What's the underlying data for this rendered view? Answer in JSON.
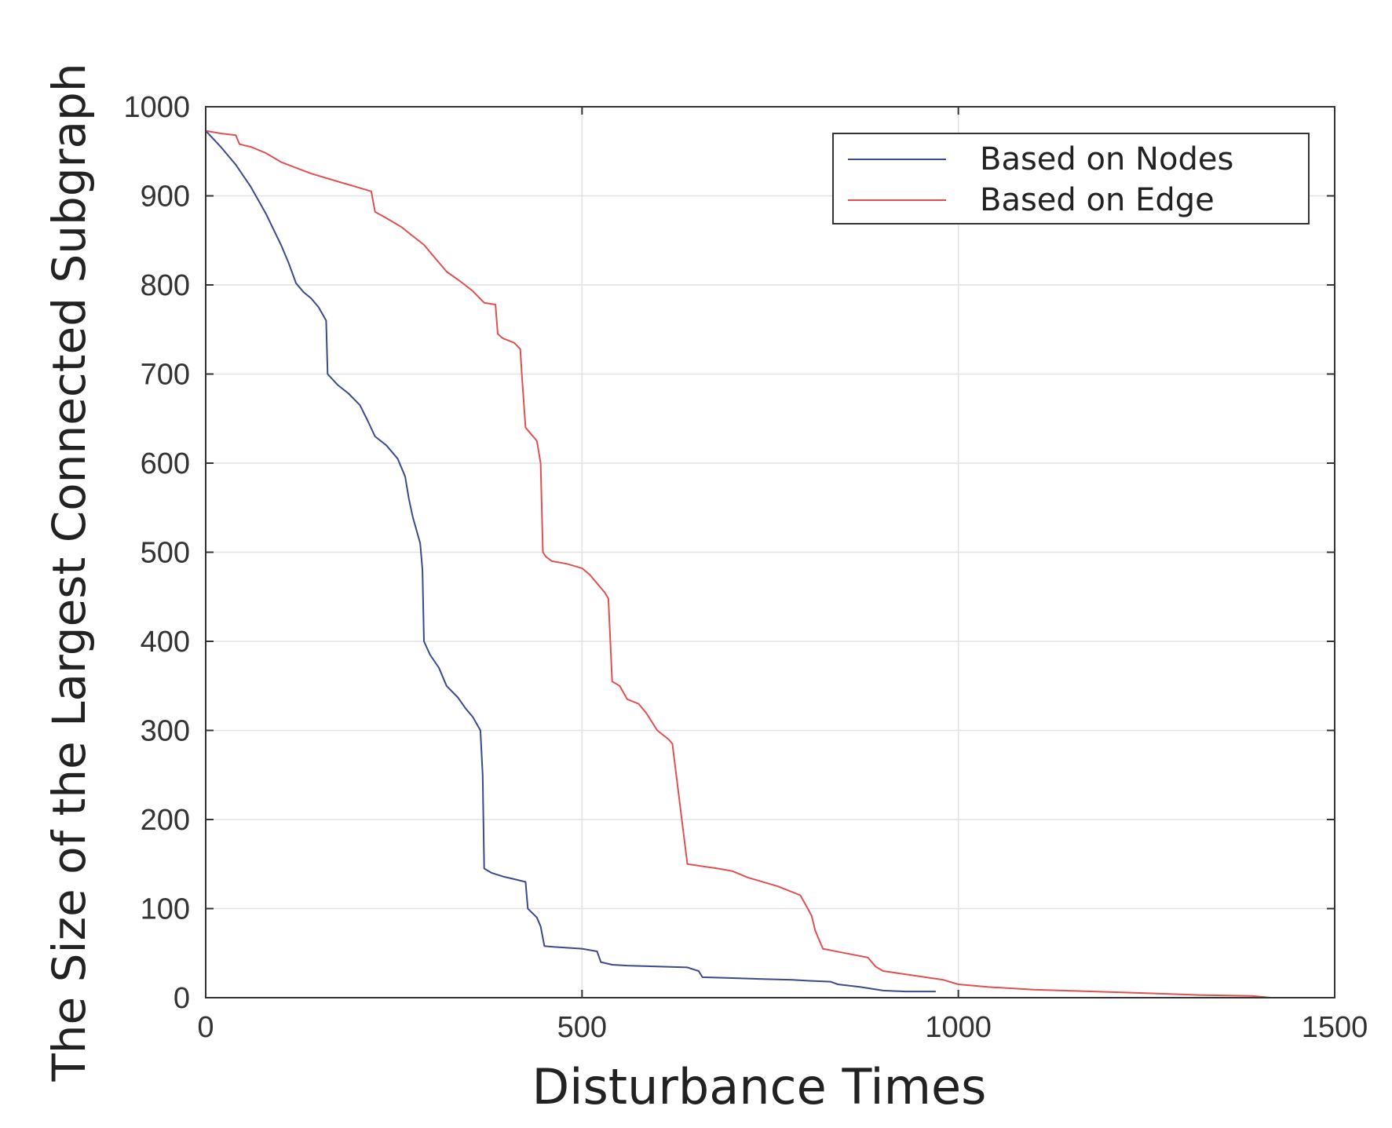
{
  "chart_data": {
    "type": "line",
    "xlabel": "Disturbance Times",
    "ylabel": "The Size of the Largest Connected Subgraph",
    "xlim": [
      0,
      1500
    ],
    "ylim": [
      0,
      1000
    ],
    "xticks": [
      0,
      500,
      1000,
      1500
    ],
    "yticks": [
      0,
      100,
      200,
      300,
      400,
      500,
      600,
      700,
      800,
      900,
      1000
    ],
    "xtick_labels": [
      "0",
      "500",
      "1000",
      "1500"
    ],
    "ytick_labels": [
      "0",
      "100",
      "200",
      "300",
      "400",
      "500",
      "600",
      "700",
      "800",
      "900",
      "1000"
    ],
    "grid": true,
    "legend_position": "top-right",
    "series": [
      {
        "name": "Based on Nodes",
        "color": "#3a4a8a",
        "x": [
          0,
          20,
          40,
          60,
          80,
          100,
          110,
          120,
          130,
          140,
          150,
          160,
          162,
          175,
          190,
          205,
          215,
          225,
          240,
          255,
          265,
          270,
          275,
          280,
          285,
          288,
          290,
          298,
          310,
          320,
          335,
          345,
          355,
          365,
          368,
          370,
          380,
          395,
          410,
          425,
          428,
          440,
          445,
          450,
          462,
          480,
          500,
          520,
          525,
          540,
          560,
          600,
          640,
          655,
          660,
          700,
          740,
          780,
          800,
          830,
          840,
          870,
          900,
          930,
          970
        ],
        "y": [
          973,
          955,
          935,
          910,
          880,
          845,
          825,
          802,
          792,
          785,
          775,
          760,
          700,
          688,
          678,
          665,
          648,
          630,
          620,
          605,
          585,
          560,
          540,
          525,
          510,
          480,
          400,
          385,
          370,
          350,
          337,
          325,
          315,
          300,
          250,
          145,
          140,
          136,
          133,
          130,
          100,
          90,
          80,
          58,
          57,
          56,
          55,
          52,
          40,
          37,
          36,
          35,
          34,
          30,
          23,
          22,
          21,
          20,
          19,
          18,
          15,
          12,
          8,
          7,
          7
        ]
      },
      {
        "name": "Based on Edge",
        "color": "#e05050",
        "x": [
          0,
          20,
          40,
          45,
          60,
          80,
          100,
          140,
          180,
          200,
          220,
          225,
          240,
          260,
          275,
          290,
          305,
          320,
          340,
          355,
          370,
          385,
          388,
          395,
          410,
          418,
          420,
          425,
          430,
          435,
          440,
          445,
          448,
          452,
          460,
          480,
          500,
          510,
          520,
          525,
          530,
          535,
          540,
          550,
          560,
          575,
          585,
          600,
          615,
          620,
          640,
          680,
          700,
          720,
          760,
          790,
          800,
          805,
          810,
          820,
          850,
          880,
          890,
          900,
          940,
          980,
          1000,
          1040,
          1100,
          1180,
          1250,
          1320,
          1390,
          1415
        ],
        "y": [
          973,
          970,
          968,
          958,
          955,
          948,
          938,
          925,
          915,
          910,
          905,
          882,
          875,
          865,
          855,
          845,
          830,
          815,
          803,
          793,
          780,
          778,
          745,
          740,
          735,
          728,
          700,
          640,
          635,
          630,
          625,
          600,
          500,
          495,
          490,
          487,
          482,
          475,
          465,
          460,
          455,
          448,
          355,
          350,
          335,
          330,
          320,
          300,
          290,
          285,
          150,
          145,
          142,
          135,
          125,
          115,
          100,
          92,
          75,
          55,
          50,
          45,
          35,
          30,
          25,
          20,
          15,
          12,
          9,
          7,
          5,
          3,
          2,
          0
        ]
      }
    ]
  }
}
